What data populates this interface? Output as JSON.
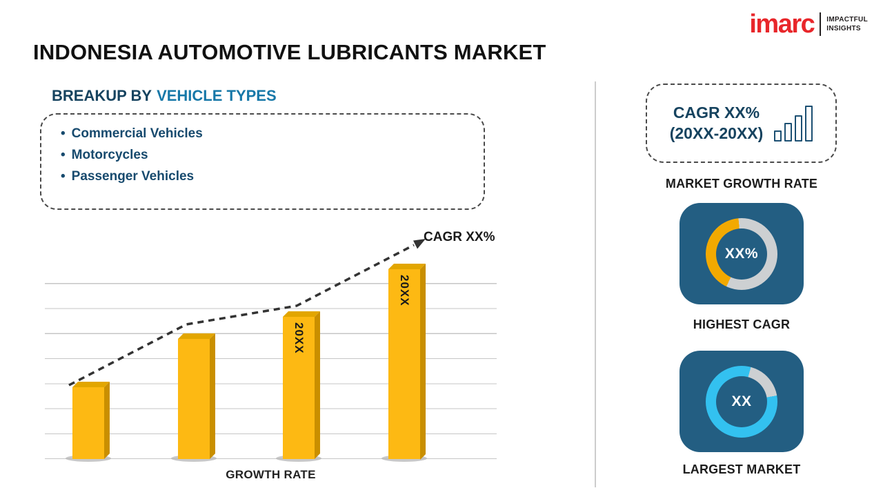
{
  "header": {
    "title": "INDONESIA AUTOMOTIVE LUBRICANTS MARKET",
    "logo": {
      "brand": "imarc",
      "tagline_line1": "IMPACTFUL",
      "tagline_line2": "INSIGHTS"
    }
  },
  "breakup": {
    "heading_prefix": "BREAKUP BY",
    "heading_highlight": "VEHICLE TYPES",
    "items": [
      {
        "label": "Commercial Vehicles"
      },
      {
        "label": "Motorcycles"
      },
      {
        "label": "Passenger Vehicles"
      }
    ]
  },
  "chart_data": {
    "type": "bar",
    "title": "",
    "xlabel": "GROWTH RATE",
    "ylabel": "",
    "categories": [
      "",
      "",
      "20XX",
      "20XX"
    ],
    "values": [
      36,
      60,
      71,
      95
    ],
    "ylim": [
      0,
      100
    ],
    "grid": true,
    "legend": false,
    "bar_color": "#FDB913",
    "bar_side_color": "#C98F00",
    "bar_top_color": "#E2A600",
    "trend": {
      "label": "CAGR XX%",
      "style": "dashed-arrow",
      "color": "#333333"
    }
  },
  "right_panel": {
    "cagr_box": {
      "line1": "CAGR XX%",
      "line2": "(20XX-20XX)",
      "icon": "ascending-bars-icon"
    },
    "market_growth": {
      "label": "MARKET GROWTH RATE"
    },
    "highest_cagr": {
      "value": "XX%",
      "label": "HIGHEST CAGR",
      "donut": {
        "fill_color": "#F2A900",
        "track_color": "#CDD0D2",
        "start_deg": 205,
        "sweep_deg": 150
      }
    },
    "largest_market": {
      "value": "XX",
      "label": "LARGEST MARKET",
      "donut": {
        "fill_color": "#33C1F0",
        "track_color": "#CDD0D2",
        "start_deg": 80,
        "sweep_deg": 295
      }
    }
  },
  "colors": {
    "heading_navy": "#16435F",
    "heading_teal": "#1778A8",
    "list_text": "#174A6E",
    "card_blue": "#235E82",
    "logo_red": "#E8262A",
    "divider": "#CCCCCC"
  }
}
